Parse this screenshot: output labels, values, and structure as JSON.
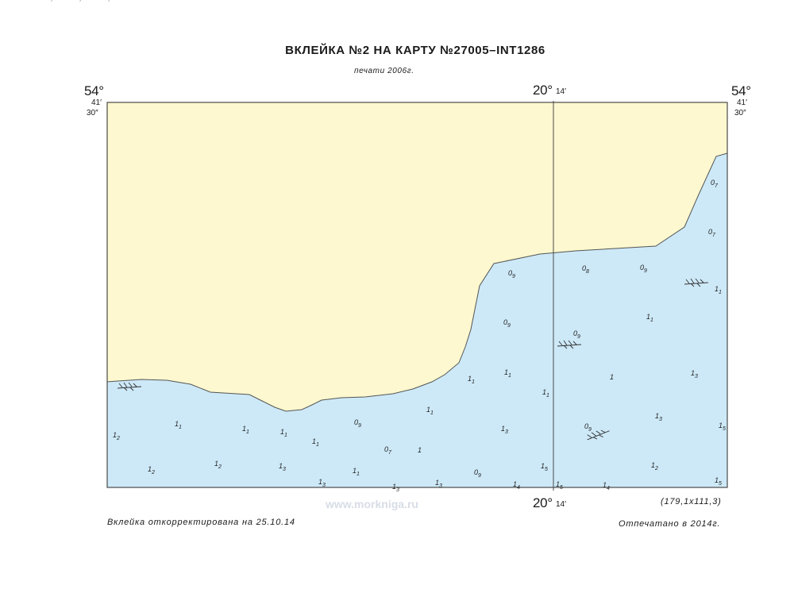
{
  "header": {
    "title": "ВКЛЕЙКА №2 НА КАРТУ №27005–INT1286",
    "subtitle": "печати 2006г."
  },
  "coords": {
    "lat_left": {
      "deg": "54°",
      "min": "41′",
      "sec": "30″"
    },
    "lat_right": {
      "deg": "54°",
      "min": "41′",
      "sec": "30″"
    },
    "lon_top": {
      "deg": "20°",
      "min": "14′"
    },
    "lon_bottom": {
      "deg": "20°",
      "min": "14′"
    }
  },
  "footer": {
    "correction_note": "Вклейка откорректирована на 25.10.14",
    "dimensions": "(179,1x111,3)",
    "printed_note": "Отпечатано в 2014г.",
    "watermark": "www.morkniga.ru"
  },
  "map": {
    "land_color": "#fdf8cf",
    "water_color": "#cde9f8",
    "frame_color": "#4a4a4a",
    "soundings": [
      {
        "base": "0",
        "sub": "7"
      },
      {
        "base": "0",
        "sub": "7"
      },
      {
        "base": "0",
        "sub": "9"
      },
      {
        "base": "0",
        "sub": "8"
      },
      {
        "base": "0",
        "sub": "9"
      },
      {
        "base": "1",
        "sub": "1"
      },
      {
        "base": "0",
        "sub": "9"
      },
      {
        "base": "0",
        "sub": "9"
      },
      {
        "base": "1",
        "sub": "1"
      },
      {
        "base": "1",
        "sub": "1"
      },
      {
        "base": "1",
        "sub": ""
      },
      {
        "base": "1",
        "sub": "3"
      },
      {
        "base": "1",
        "sub": "1"
      },
      {
        "base": "1",
        "sub": "1"
      },
      {
        "base": "1",
        "sub": "3"
      },
      {
        "base": "1",
        "sub": "1"
      },
      {
        "base": "1",
        "sub": "3"
      },
      {
        "base": "1",
        "sub": "5"
      },
      {
        "base": "1",
        "sub": "2"
      },
      {
        "base": "1",
        "sub": "1"
      },
      {
        "base": "1",
        "sub": "1"
      },
      {
        "base": "1",
        "sub": "1"
      },
      {
        "base": "1",
        "sub": "1"
      },
      {
        "base": "0",
        "sub": "9"
      },
      {
        "base": "0",
        "sub": "7"
      },
      {
        "base": "1",
        "sub": ""
      },
      {
        "base": "1",
        "sub": "3"
      },
      {
        "base": "0",
        "sub": "9"
      },
      {
        "base": "1",
        "sub": "2"
      },
      {
        "base": "1",
        "sub": "2"
      },
      {
        "base": "1",
        "sub": "3"
      },
      {
        "base": "1",
        "sub": "1"
      },
      {
        "base": "0",
        "sub": "9"
      },
      {
        "base": "1",
        "sub": "5"
      },
      {
        "base": "1",
        "sub": "2"
      },
      {
        "base": "1",
        "sub": "3"
      },
      {
        "base": "1",
        "sub": "3"
      },
      {
        "base": "1",
        "sub": "5"
      },
      {
        "base": "1",
        "sub": "4"
      },
      {
        "base": "1",
        "sub": "4"
      },
      {
        "base": "1",
        "sub": "5"
      }
    ]
  }
}
